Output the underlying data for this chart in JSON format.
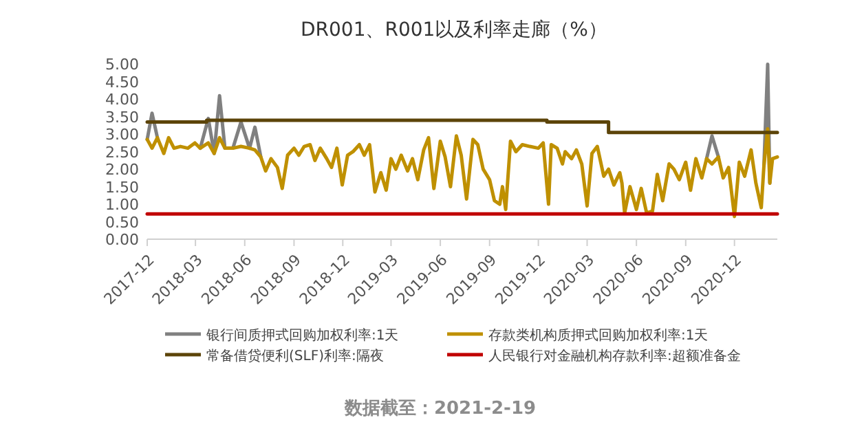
{
  "chart_data": {
    "type": "line",
    "title": "DR001、R001以及利率走廊（%）",
    "x": [
      "2017-12-01",
      "2017-12-10",
      "2017-12-20",
      "2018-01-01",
      "2018-01-10",
      "2018-01-20",
      "2018-02-01",
      "2018-02-15",
      "2018-02-28",
      "2018-03-10",
      "2018-03-25",
      "2018-04-05",
      "2018-04-15",
      "2018-04-25",
      "2018-05-10",
      "2018-05-25",
      "2018-06-10",
      "2018-06-20",
      "2018-07-01",
      "2018-07-10",
      "2018-07-20",
      "2018-08-01",
      "2018-08-10",
      "2018-08-20",
      "2018-09-01",
      "2018-09-10",
      "2018-09-20",
      "2018-10-01",
      "2018-10-10",
      "2018-10-20",
      "2018-11-01",
      "2018-11-10",
      "2018-11-20",
      "2018-11-30",
      "2018-12-10",
      "2018-12-20",
      "2019-01-01",
      "2019-01-10",
      "2019-01-20",
      "2019-01-30",
      "2019-02-10",
      "2019-02-20",
      "2019-03-01",
      "2019-03-10",
      "2019-03-20",
      "2019-04-01",
      "2019-04-10",
      "2019-04-20",
      "2019-05-01",
      "2019-05-10",
      "2019-05-20",
      "2019-06-01",
      "2019-06-10",
      "2019-06-20",
      "2019-07-01",
      "2019-07-10",
      "2019-07-20",
      "2019-08-01",
      "2019-08-10",
      "2019-08-20",
      "2019-09-01",
      "2019-09-10",
      "2019-09-20",
      "2019-09-25",
      "2019-10-01",
      "2019-10-10",
      "2019-10-20",
      "2019-11-01",
      "2019-11-15",
      "2019-12-01",
      "2019-12-10",
      "2019-12-20",
      "2019-12-25",
      "2020-01-05",
      "2020-01-15",
      "2020-01-20",
      "2020-02-01",
      "2020-02-10",
      "2020-02-20",
      "2020-03-01",
      "2020-03-10",
      "2020-03-20",
      "2020-04-01",
      "2020-04-10",
      "2020-04-20",
      "2020-05-01",
      "2020-05-05",
      "2020-05-10",
      "2020-05-20",
      "2020-06-01",
      "2020-06-10",
      "2020-06-20",
      "2020-07-01",
      "2020-07-10",
      "2020-07-20",
      "2020-08-01",
      "2020-08-10",
      "2020-08-20",
      "2020-09-01",
      "2020-09-10",
      "2020-09-20",
      "2020-10-01",
      "2020-10-10",
      "2020-10-20",
      "2020-11-01",
      "2020-11-10",
      "2020-11-20",
      "2020-12-01",
      "2020-12-10",
      "2020-12-20",
      "2021-01-01",
      "2021-01-10",
      "2021-01-20",
      "2021-01-25",
      "2021-02-01",
      "2021-02-05",
      "2021-02-10",
      "2021-02-19"
    ],
    "xlim": [
      "2017-12-01",
      "2021-02-19"
    ],
    "xticks": [
      "2017-12",
      "2018-03",
      "2018-06",
      "2018-09",
      "2018-12",
      "2019-03",
      "2019-06",
      "2019-09",
      "2019-12",
      "2020-03",
      "2020-06",
      "2020-09",
      "2020-12"
    ],
    "ylim": [
      0,
      5
    ],
    "yticks": [
      {
        "value": 0,
        "label": "0.00"
      },
      {
        "value": 0.5,
        "label": "0.50"
      },
      {
        "value": 1,
        "label": "1.00"
      },
      {
        "value": 1.5,
        "label": "1.50"
      },
      {
        "value": 2,
        "label": "2.00"
      },
      {
        "value": 2.5,
        "label": "2.50"
      },
      {
        "value": 3,
        "label": "3.00"
      },
      {
        "value": 3.5,
        "label": "3.50"
      },
      {
        "value": 4,
        "label": "4.00"
      },
      {
        "value": 4.5,
        "label": "4.50"
      },
      {
        "value": 5,
        "label": "5.00"
      }
    ],
    "series": [
      {
        "name": "银行间质押式回购加权利率:1天",
        "color": "#808080",
        "values": [
          2.85,
          3.6,
          2.9,
          null,
          null,
          null,
          null,
          null,
          null,
          2.6,
          3.45,
          2.45,
          4.1,
          2.6,
          2.6,
          3.35,
          2.6,
          3.2,
          2.35,
          null,
          null,
          null,
          null,
          null,
          null,
          null,
          null,
          null,
          null,
          null,
          null,
          null,
          null,
          null,
          null,
          null,
          null,
          null,
          null,
          null,
          null,
          null,
          null,
          null,
          null,
          null,
          null,
          null,
          null,
          null,
          null,
          null,
          null,
          null,
          null,
          null,
          null,
          null,
          null,
          null,
          null,
          null,
          null,
          null,
          null,
          null,
          null,
          null,
          null,
          null,
          null,
          null,
          null,
          null,
          null,
          null,
          null,
          null,
          null,
          null,
          null,
          null,
          null,
          null,
          null,
          null,
          null,
          null,
          null,
          null,
          null,
          null,
          null,
          null,
          null,
          null,
          null,
          null,
          null,
          null,
          null,
          null,
          2.3,
          2.95,
          2.35,
          null,
          null,
          null,
          null,
          null,
          null,
          null,
          null,
          2.1,
          5.0,
          1.6,
          null,
          null
        ]
      },
      {
        "name": "存款类机构质押式回购加权利率:1天",
        "color": "#bf9000",
        "values": [
          2.85,
          2.6,
          2.9,
          2.45,
          2.9,
          2.6,
          2.65,
          2.6,
          2.75,
          2.6,
          2.75,
          2.45,
          2.9,
          2.6,
          2.6,
          2.65,
          2.6,
          2.55,
          2.35,
          1.95,
          2.3,
          2.05,
          1.45,
          2.4,
          2.6,
          2.4,
          2.65,
          2.7,
          2.25,
          2.6,
          2.3,
          2.05,
          2.6,
          1.55,
          2.4,
          2.5,
          2.7,
          2.4,
          2.7,
          1.35,
          1.9,
          1.4,
          2.3,
          2.0,
          2.4,
          1.95,
          2.3,
          1.7,
          2.55,
          2.9,
          1.45,
          2.8,
          2.35,
          1.5,
          2.95,
          2.4,
          1.15,
          2.85,
          2.7,
          2.0,
          1.7,
          1.1,
          1.0,
          1.5,
          0.85,
          2.8,
          2.5,
          2.7,
          2.65,
          2.6,
          2.75,
          1.0,
          2.7,
          2.6,
          2.15,
          2.5,
          2.3,
          2.55,
          2.15,
          0.95,
          2.45,
          2.65,
          1.8,
          2.0,
          1.55,
          1.9,
          1.6,
          0.75,
          1.5,
          0.85,
          1.45,
          0.75,
          0.8,
          1.85,
          1.1,
          2.15,
          2.0,
          1.7,
          2.2,
          1.4,
          2.3,
          1.75,
          2.3,
          2.15,
          2.35,
          1.75,
          2.05,
          0.65,
          2.2,
          1.8,
          2.55,
          1.6,
          0.9,
          2.1,
          3.15,
          1.6,
          2.3,
          2.35
        ]
      },
      {
        "name": "常备借贷便利(SLF)利率:隔夜",
        "color": "#5c4409",
        "x": [
          "2017-12-01",
          "2018-03-22",
          "2018-03-22",
          "2019-12-17",
          "2019-12-17",
          "2020-04-10",
          "2020-04-10",
          "2021-02-19"
        ],
        "values": [
          3.35,
          3.35,
          3.4,
          3.4,
          3.35,
          3.35,
          3.05,
          3.05
        ]
      },
      {
        "name": "人民银行对金融机构存款利率:超额准备金",
        "color": "#c00000",
        "x": [
          "2017-12-01",
          "2021-02-19"
        ],
        "values": [
          0.72,
          0.72
        ]
      }
    ],
    "legend": "bottom",
    "annotations": [
      "数据截至：2021-2-19"
    ]
  }
}
